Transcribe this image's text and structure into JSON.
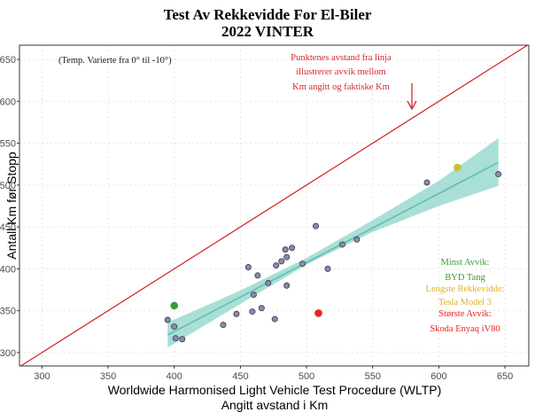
{
  "chart_data": {
    "type": "scatter",
    "title": "Test Av Rekkevidde For El-Biler",
    "subtitle": "2022 VINTER",
    "xlabel_line1": "Worldwide Harmonised Light Vehicle Test Procedure (WLTP)",
    "xlabel_line2": "Angitt avstand i Km",
    "ylabel": "Antall Km før Stopp",
    "xlim": [
      283,
      668
    ],
    "ylim": [
      284,
      667
    ],
    "x_ticks": [
      300,
      350,
      400,
      450,
      500,
      550,
      600,
      650
    ],
    "y_ticks": [
      300,
      350,
      400,
      450,
      500,
      550,
      600,
      650
    ],
    "grid": true,
    "reference_line": {
      "slope": 1,
      "intercept": 0,
      "color": "#d7262b"
    },
    "regression": {
      "x_start": 395,
      "y_start": 321,
      "x_end": 645,
      "y_end": 527,
      "ci_band": [
        {
          "x": 395,
          "lower": 306,
          "upper": 336
        },
        {
          "x": 450,
          "lower": 358,
          "upper": 374
        },
        {
          "x": 500,
          "lower": 405,
          "upper": 413
        },
        {
          "x": 550,
          "lower": 444,
          "upper": 458
        },
        {
          "x": 600,
          "lower": 475,
          "upper": 505
        },
        {
          "x": 645,
          "lower": 499,
          "upper": 556
        }
      ],
      "line_color": "#5fbfb0",
      "band_color": "#9ad9cf"
    },
    "points": [
      {
        "x": 395,
        "y": 339
      },
      {
        "x": 400,
        "y": 331
      },
      {
        "x": 401,
        "y": 317
      },
      {
        "x": 406,
        "y": 316
      },
      {
        "x": 437,
        "y": 333
      },
      {
        "x": 447,
        "y": 346
      },
      {
        "x": 456,
        "y": 402
      },
      {
        "x": 459,
        "y": 349
      },
      {
        "x": 460,
        "y": 369
      },
      {
        "x": 463,
        "y": 392
      },
      {
        "x": 466,
        "y": 353
      },
      {
        "x": 471,
        "y": 383
      },
      {
        "x": 476,
        "y": 340
      },
      {
        "x": 477,
        "y": 404
      },
      {
        "x": 481,
        "y": 409
      },
      {
        "x": 484,
        "y": 423
      },
      {
        "x": 485,
        "y": 414
      },
      {
        "x": 485,
        "y": 380
      },
      {
        "x": 489,
        "y": 425
      },
      {
        "x": 497,
        "y": 406
      },
      {
        "x": 507,
        "y": 451
      },
      {
        "x": 516,
        "y": 400
      },
      {
        "x": 527,
        "y": 429
      },
      {
        "x": 538,
        "y": 435
      },
      {
        "x": 591,
        "y": 503
      },
      {
        "x": 645,
        "y": 513
      }
    ],
    "point_color": "#8a8aa8",
    "highlights": [
      {
        "label": "BYD Tang",
        "x": 400,
        "y": 356,
        "color": "#3a9a3a"
      },
      {
        "label": "Tesla Model 3",
        "x": 614,
        "y": 521,
        "color": "#c2c13a"
      },
      {
        "label": "Skoda Enyaq iV80",
        "x": 509,
        "y": 347,
        "color": "#ee2222"
      }
    ],
    "annotations": {
      "temp_note": "(Temp. Varierte fra 0° til -10°)",
      "deviation_note": [
        "Punktenes avstand fra linja",
        "illustrerer avvik mellom",
        "Km angitt og faktiske Km"
      ],
      "deviation_note_color": "#d7262b",
      "side_labels": [
        {
          "text": "Minst Avvik:",
          "color": "#3a9a3a"
        },
        {
          "text": "BYD Tang",
          "color": "#3a9a3a"
        },
        {
          "text": "Lengste Rekkevidde:",
          "color": "#e0b020"
        },
        {
          "text": "Tesla Model 3",
          "color": "#e0b020"
        },
        {
          "text": "Største Avvik:",
          "color": "#ee2222"
        },
        {
          "text": "Skoda Enyaq iV80",
          "color": "#ee2222"
        }
      ]
    }
  }
}
